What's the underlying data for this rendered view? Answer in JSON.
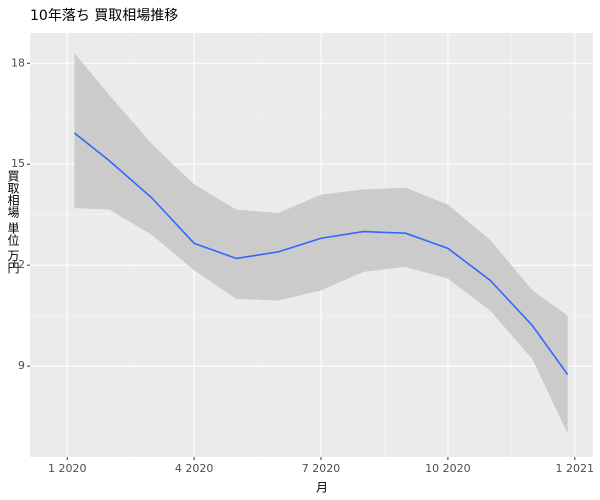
{
  "chart_data": {
    "type": "smooth",
    "title": "10年落ち 買取相場推移",
    "x_label": "月",
    "y_label": "買取相場 単位 万円",
    "x": [
      0.17,
      1,
      2,
      3,
      4,
      5,
      6,
      7,
      8,
      9,
      10,
      11,
      11.83
    ],
    "line": {
      "color": "#3366ff",
      "values": [
        15.93,
        15.1,
        14.0,
        12.65,
        12.2,
        12.4,
        12.8,
        13.0,
        12.95,
        12.5,
        11.55,
        10.2,
        8.75
      ]
    },
    "band": {
      "color": "#c8c8c8",
      "lower": [
        13.7,
        13.65,
        12.9,
        11.85,
        11.0,
        10.95,
        11.25,
        11.8,
        11.95,
        11.6,
        10.65,
        9.2,
        7.0
      ],
      "upper": [
        18.3,
        17.05,
        15.6,
        14.4,
        13.65,
        13.55,
        14.1,
        14.25,
        14.3,
        13.8,
        12.75,
        11.25,
        10.5
      ]
    },
    "xlim": [
      -0.88,
      12.43
    ],
    "xticks": [
      {
        "value": 0,
        "label": "1 2020"
      },
      {
        "value": 3,
        "label": "4 2020"
      },
      {
        "value": 6,
        "label": "7 2020"
      },
      {
        "value": 9,
        "label": "10 2020"
      },
      {
        "value": 12,
        "label": "1 2021"
      }
    ],
    "ylim": [
      6.3,
      18.9
    ],
    "yticks": [
      9,
      12,
      15,
      18
    ],
    "grid": true
  }
}
